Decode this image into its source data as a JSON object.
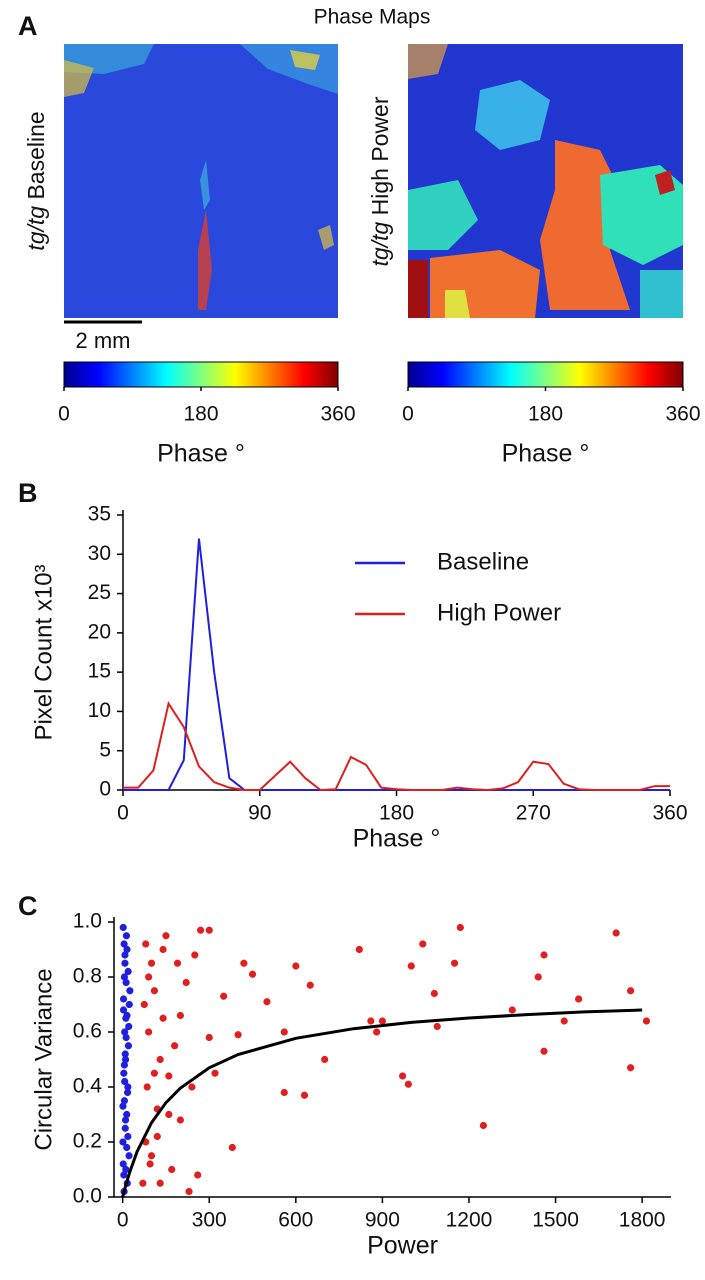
{
  "chart_data": [
    {
      "type": "heatmap",
      "panel_label": "A",
      "title": "Phase Maps",
      "panels": [
        {
          "label_italic": "tg/tg",
          "label": "Baseline"
        },
        {
          "label_italic": "tg/tg",
          "label": "High Power"
        }
      ],
      "scale_bar": "2 mm",
      "colorbar": {
        "lim": [
          0,
          360
        ],
        "ticks": [
          0,
          180,
          360
        ],
        "label": "Phase °",
        "colors": [
          "#00008f",
          "#0000ff",
          "#0080ff",
          "#00ffff",
          "#80ff80",
          "#ffff00",
          "#ff8000",
          "#ff0000",
          "#800000"
        ]
      }
    },
    {
      "type": "line",
      "panel_label": "B",
      "xlabel": "Phase °",
      "ylabel": "Pixel Count x10³",
      "x": [
        0,
        10,
        20,
        30,
        40,
        50,
        60,
        70,
        80,
        90,
        100,
        110,
        120,
        130,
        140,
        150,
        160,
        170,
        180,
        190,
        200,
        210,
        220,
        230,
        240,
        250,
        260,
        270,
        280,
        290,
        300,
        310,
        320,
        330,
        340,
        350,
        360
      ],
      "series": [
        {
          "name": "Baseline",
          "color": "#1f1fdc",
          "values": [
            0,
            0,
            0,
            0,
            3.8,
            32,
            15,
            1.5,
            0,
            0,
            0,
            0,
            0,
            0,
            0,
            0,
            0,
            0,
            0,
            0,
            0,
            0,
            0,
            0,
            0,
            0,
            0,
            0,
            0,
            0,
            0,
            0,
            0,
            0,
            0,
            0,
            0
          ]
        },
        {
          "name": "High Power",
          "color": "#dc1f1f",
          "values": [
            0.3,
            0.3,
            2.5,
            11,
            8,
            3,
            1,
            0.3,
            0,
            0,
            1.8,
            3.6,
            1.5,
            0,
            0.1,
            4.2,
            3.2,
            0.3,
            0.1,
            0,
            0,
            0,
            0.3,
            0.1,
            0,
            0.2,
            1,
            3.6,
            3.3,
            0.8,
            0.1,
            0,
            0,
            0,
            0,
            0.5,
            0.5
          ]
        }
      ],
      "xlim": [
        0,
        360
      ],
      "xticks": [
        0,
        90,
        180,
        270,
        360
      ],
      "ylim": [
        0,
        35
      ],
      "yticks": [
        0,
        5,
        10,
        15,
        20,
        25,
        30,
        35
      ]
    },
    {
      "type": "scatter",
      "panel_label": "C",
      "xlabel": "Power",
      "ylabel": "Circular Variance",
      "series": [
        {
          "color": "#1f1fe0",
          "x": [
            2,
            5,
            8,
            12,
            3,
            15,
            7,
            20,
            10,
            4,
            18,
            6,
            14,
            9,
            1,
            22,
            11,
            16,
            5,
            13,
            8,
            19,
            3,
            25,
            12,
            6,
            17,
            10,
            2,
            21,
            7,
            14,
            4,
            9,
            23,
            15,
            11,
            1,
            18,
            6
          ],
          "y": [
            0.98,
            0.92,
            0.85,
            0.78,
            0.72,
            0.66,
            0.6,
            0.55,
            0.5,
            0.45,
            0.4,
            0.35,
            0.3,
            0.25,
            0.2,
            0.15,
            0.1,
            0.05,
            0.02,
            0.95,
            0.88,
            0.82,
            0.68,
            0.75,
            0.58,
            0.48,
            0.38,
            0.28,
            0.12,
            0.62,
            0.42,
            0.18,
            0.08,
            0.52,
            0.7,
            0.9,
            0.65,
            0.33,
            0.22,
            0.8
          ]
        },
        {
          "color": "#e01f1f",
          "x": [
            1170,
            1710,
            1040,
            820,
            1150,
            1460,
            1760,
            1815,
            1440,
            1080,
            1000,
            900,
            880,
            970,
            990,
            1250,
            1460,
            1580,
            1760,
            1530,
            1350,
            860,
            1090,
            600,
            650,
            630,
            560,
            500,
            450,
            420,
            380,
            400,
            350,
            300,
            270,
            250,
            220,
            200,
            180,
            160,
            150,
            140,
            120,
            110,
            100,
            95,
            90,
            85,
            80,
            75,
            70,
            130,
            170,
            200,
            230,
            260,
            120,
            90,
            110,
            140,
            100,
            160,
            560,
            700,
            320,
            240,
            190,
            80,
            130,
            300
          ],
          "y": [
            0.98,
            0.96,
            0.92,
            0.9,
            0.85,
            0.88,
            0.75,
            0.64,
            0.8,
            0.74,
            0.84,
            0.64,
            0.6,
            0.44,
            0.41,
            0.26,
            0.53,
            0.72,
            0.47,
            0.64,
            0.68,
            0.64,
            0.62,
            0.84,
            0.77,
            0.37,
            0.38,
            0.71,
            0.81,
            0.85,
            0.18,
            0.59,
            0.73,
            0.97,
            0.97,
            0.88,
            0.78,
            0.66,
            0.55,
            0.44,
            0.95,
            0.9,
            0.32,
            0.75,
            0.85,
            0.12,
            0.6,
            0.4,
            0.2,
            0.7,
            0.05,
            0.5,
            0.1,
            0.28,
            0.02,
            0.08,
            0.22,
            0.8,
            0.45,
            0.65,
            0.15,
            0.3,
            0.6,
            0.5,
            0.45,
            0.4,
            0.85,
            0.92,
            0.05,
            0.58
          ]
        }
      ],
      "fit": {
        "color": "#000000",
        "x": [
          0,
          10,
          25,
          50,
          100,
          150,
          200,
          300,
          400,
          600,
          800,
          1000,
          1200,
          1400,
          1600,
          1800
        ],
        "y": [
          0,
          0.04,
          0.092,
          0.165,
          0.27,
          0.343,
          0.396,
          0.47,
          0.518,
          0.577,
          0.612,
          0.635,
          0.651,
          0.663,
          0.673,
          0.68
        ]
      },
      "xlim": [
        -30,
        1900
      ],
      "xticks": [
        0,
        300,
        600,
        900,
        1200,
        1500,
        1800
      ],
      "ylim": [
        0,
        1
      ],
      "yticks": [
        {
          "value": 0,
          "label": "0.0"
        },
        {
          "value": 0.2,
          "label": "0.2"
        },
        {
          "value": 0.4,
          "label": "0.4"
        },
        {
          "value": 0.6,
          "label": "0.6"
        },
        {
          "value": 0.8,
          "label": "0.8"
        },
        {
          "value": 1,
          "label": "1.0"
        }
      ]
    }
  ]
}
